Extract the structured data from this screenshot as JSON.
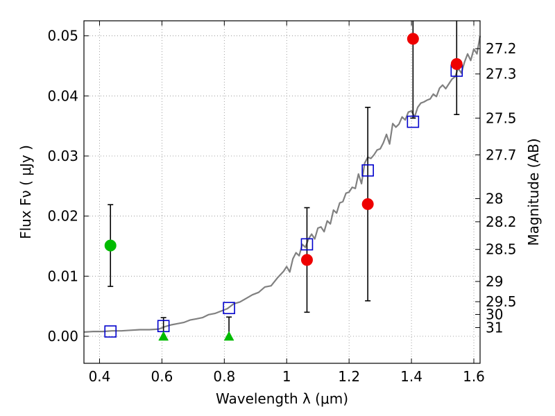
{
  "chart_data": {
    "type": "scatter",
    "xlabel": "Wavelength  λ (μm)",
    "ylabel": "Flux  Fν  ( μJy )",
    "ylabel_right": "Magnitude (AB)",
    "xlim": [
      0.35,
      1.62
    ],
    "ylim": [
      -0.0045,
      0.0525
    ],
    "grid": true,
    "xticks": [
      {
        "value": 0.4,
        "label": "0.4"
      },
      {
        "value": 0.6,
        "label": "0.6"
      },
      {
        "value": 0.8,
        "label": "0.8"
      },
      {
        "value": 1.0,
        "label": "1"
      },
      {
        "value": 1.2,
        "label": "1.2"
      },
      {
        "value": 1.4,
        "label": "1.4"
      },
      {
        "value": 1.6,
        "label": "1.6"
      }
    ],
    "yticks": [
      {
        "value": 0.0,
        "label": "0.00"
      },
      {
        "value": 0.01,
        "label": "0.01"
      },
      {
        "value": 0.02,
        "label": "0.02"
      },
      {
        "value": 0.03,
        "label": "0.03"
      },
      {
        "value": 0.04,
        "label": "0.04"
      },
      {
        "value": 0.05,
        "label": "0.05"
      }
    ],
    "right_ticks": [
      {
        "mag": 27.2,
        "label": "27.2"
      },
      {
        "mag": 27.3,
        "label": "27.3"
      },
      {
        "mag": 27.5,
        "label": "27.5"
      },
      {
        "mag": 27.7,
        "label": "27.7"
      },
      {
        "mag": 28,
        "label": "28"
      },
      {
        "mag": 28.2,
        "label": "28.2"
      },
      {
        "mag": 28.5,
        "label": "28.5"
      },
      {
        "mag": 29,
        "label": "29"
      },
      {
        "mag": 29.5,
        "label": "29.5"
      },
      {
        "mag": 30,
        "label": "30"
      },
      {
        "mag": 31,
        "label": "31"
      }
    ],
    "colors": {
      "spectrum": "#808080",
      "model": "#0000cc",
      "detection_red": "#ee0000",
      "detection_green": "#00bb00",
      "errorbar": "#000000",
      "grid": "#888888"
    },
    "spectrum": {
      "x": [
        0.35,
        0.38,
        0.41,
        0.44,
        0.47,
        0.5,
        0.53,
        0.56,
        0.59,
        0.61,
        0.63,
        0.65,
        0.67,
        0.69,
        0.71,
        0.73,
        0.75,
        0.77,
        0.79,
        0.81,
        0.83,
        0.85,
        0.87,
        0.89,
        0.91,
        0.93,
        0.95,
        0.97,
        0.99,
        1.0,
        1.01,
        1.02,
        1.03,
        1.04,
        1.05,
        1.06,
        1.07,
        1.08,
        1.09,
        1.1,
        1.11,
        1.12,
        1.13,
        1.14,
        1.15,
        1.16,
        1.17,
        1.18,
        1.19,
        1.2,
        1.21,
        1.22,
        1.23,
        1.24,
        1.25,
        1.26,
        1.27,
        1.28,
        1.29,
        1.3,
        1.31,
        1.32,
        1.33,
        1.34,
        1.35,
        1.36,
        1.37,
        1.38,
        1.39,
        1.4,
        1.41,
        1.42,
        1.43,
        1.44,
        1.45,
        1.46,
        1.47,
        1.48,
        1.49,
        1.5,
        1.51,
        1.52,
        1.53,
        1.54,
        1.55,
        1.56,
        1.57,
        1.58,
        1.59,
        1.6,
        1.61,
        1.62
      ],
      "y": [
        0.0007,
        0.0008,
        0.0008,
        0.0009,
        0.0009,
        0.001,
        0.0011,
        0.0011,
        0.0012,
        0.0016,
        0.0019,
        0.0021,
        0.0023,
        0.0027,
        0.0029,
        0.0031,
        0.0036,
        0.0038,
        0.0042,
        0.0046,
        0.0054,
        0.0057,
        0.0063,
        0.0069,
        0.0073,
        0.0082,
        0.0084,
        0.0097,
        0.0108,
        0.0116,
        0.0107,
        0.0129,
        0.0139,
        0.0134,
        0.0153,
        0.0148,
        0.0162,
        0.017,
        0.0162,
        0.018,
        0.0182,
        0.0174,
        0.0192,
        0.0187,
        0.021,
        0.0205,
        0.0222,
        0.0224,
        0.0238,
        0.024,
        0.0248,
        0.0246,
        0.027,
        0.0254,
        0.0288,
        0.0298,
        0.0296,
        0.0302,
        0.031,
        0.0312,
        0.0322,
        0.0336,
        0.032,
        0.0354,
        0.0348,
        0.0353,
        0.0365,
        0.036,
        0.0373,
        0.0375,
        0.0365,
        0.0381,
        0.0388,
        0.039,
        0.0393,
        0.0395,
        0.0403,
        0.0399,
        0.0413,
        0.0418,
        0.0412,
        0.042,
        0.0428,
        0.0432,
        0.0446,
        0.0438,
        0.0456,
        0.047,
        0.0459,
        0.0478,
        0.047,
        0.05
      ]
    },
    "model_points": [
      {
        "x": 0.435,
        "y": 0.0008
      },
      {
        "x": 0.605,
        "y": 0.0017
      },
      {
        "x": 0.815,
        "y": 0.0047
      },
      {
        "x": 1.065,
        "y": 0.0153
      },
      {
        "x": 1.26,
        "y": 0.0276
      },
      {
        "x": 1.405,
        "y": 0.0357
      },
      {
        "x": 1.545,
        "y": 0.0442
      }
    ],
    "detections_red": [
      {
        "x": 1.065,
        "y": 0.0127,
        "ylo": 0.004,
        "yhi": 0.0214
      },
      {
        "x": 1.26,
        "y": 0.022,
        "ylo": 0.0059,
        "yhi": 0.0381
      },
      {
        "x": 1.405,
        "y": 0.0495,
        "ylo": 0.0363,
        "yhi": 0.053
      },
      {
        "x": 1.545,
        "y": 0.0453,
        "ylo": 0.0369,
        "yhi": 0.053
      }
    ],
    "detections_green": [
      {
        "x": 0.435,
        "y": 0.0151,
        "ylo": 0.0083,
        "yhi": 0.0219
      }
    ],
    "upper_limits_green": [
      {
        "x": 0.605,
        "y": 0.0,
        "yhi": 0.0031
      },
      {
        "x": 0.815,
        "y": 0.0,
        "yhi": 0.0032
      }
    ]
  }
}
